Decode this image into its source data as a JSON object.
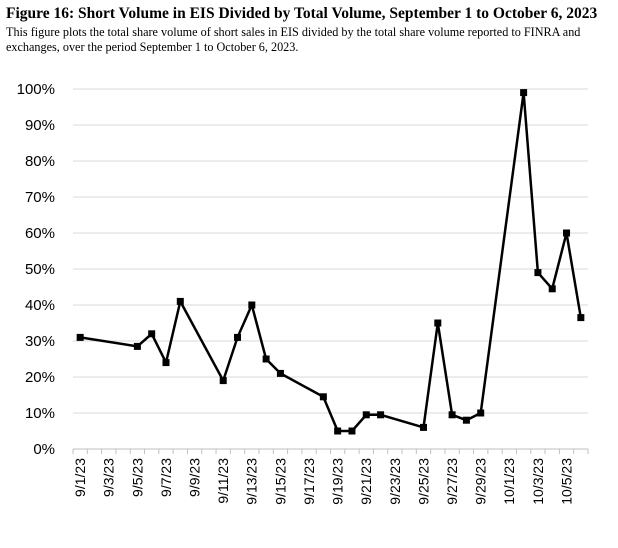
{
  "figure": {
    "title": "Figure 16: Short Volume in EIS Divided by Total Volume, September 1 to October 6, 2023",
    "caption": "This figure plots the total share volume of short sales in EIS divided by the total share volume reported to FINRA and exchanges, over the period September 1 to October 6, 2023."
  },
  "chart_data": {
    "type": "line",
    "title": "",
    "xlabel": "",
    "ylabel": "",
    "ylim": [
      0,
      100
    ],
    "y_unit": "%",
    "y_ticks": [
      "0%",
      "10%",
      "20%",
      "30%",
      "40%",
      "50%",
      "60%",
      "70%",
      "80%",
      "90%",
      "100%"
    ],
    "x_range": [
      "2023-09-01",
      "2023-10-07"
    ],
    "x_tick_labels": [
      "9/1/23",
      "9/3/23",
      "9/5/23",
      "9/7/23",
      "9/9/23",
      "9/11/23",
      "9/13/23",
      "9/15/23",
      "9/17/23",
      "9/19/23",
      "9/21/23",
      "9/23/23",
      "9/25/23",
      "9/27/23",
      "9/29/23",
      "10/1/23",
      "10/3/23",
      "10/5/23"
    ],
    "x_tick_dates": [
      "2023-09-01",
      "2023-09-03",
      "2023-09-05",
      "2023-09-07",
      "2023-09-09",
      "2023-09-11",
      "2023-09-13",
      "2023-09-15",
      "2023-09-17",
      "2023-09-19",
      "2023-09-21",
      "2023-09-23",
      "2023-09-25",
      "2023-09-27",
      "2023-09-29",
      "2023-10-01",
      "2023-10-03",
      "2023-10-05"
    ],
    "grid": true,
    "legend": "none",
    "series": [
      {
        "color": "#000000",
        "marker": "square",
        "x": [
          "2023-09-01",
          "2023-09-05",
          "2023-09-06",
          "2023-09-07",
          "2023-09-08",
          "2023-09-11",
          "2023-09-12",
          "2023-09-13",
          "2023-09-14",
          "2023-09-15",
          "2023-09-18",
          "2023-09-19",
          "2023-09-20",
          "2023-09-21",
          "2023-09-22",
          "2023-09-25",
          "2023-09-26",
          "2023-09-27",
          "2023-09-28",
          "2023-09-29",
          "2023-10-02",
          "2023-10-03",
          "2023-10-04",
          "2023-10-05",
          "2023-10-06"
        ],
        "y": [
          31,
          28.5,
          32,
          24,
          41,
          19,
          31,
          40,
          25,
          21,
          14.5,
          5,
          5,
          9.5,
          9.5,
          6,
          35,
          9.5,
          8,
          10,
          99,
          49,
          44.5,
          60,
          36.5
        ]
      }
    ]
  }
}
